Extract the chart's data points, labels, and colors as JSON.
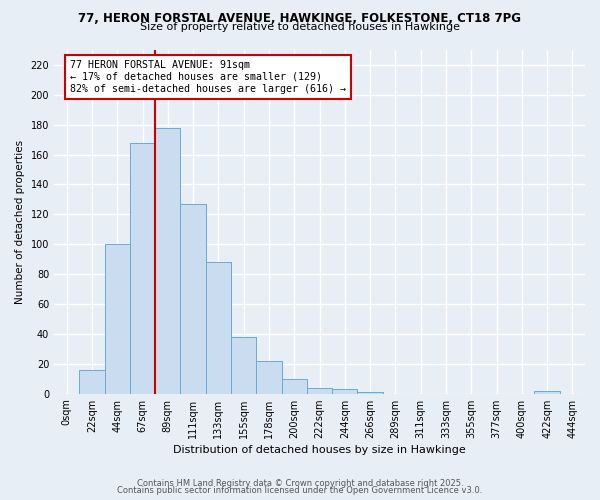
{
  "title_line1": "77, HERON FORSTAL AVENUE, HAWKINGE, FOLKESTONE, CT18 7PG",
  "title_line2": "Size of property relative to detached houses in Hawkinge",
  "xlabel": "Distribution of detached houses by size in Hawkinge",
  "ylabel": "Number of detached properties",
  "bar_labels": [
    "0sqm",
    "22sqm",
    "44sqm",
    "67sqm",
    "89sqm",
    "111sqm",
    "133sqm",
    "155sqm",
    "178sqm",
    "200sqm",
    "222sqm",
    "244sqm",
    "266sqm",
    "289sqm",
    "311sqm",
    "333sqm",
    "355sqm",
    "377sqm",
    "400sqm",
    "422sqm",
    "444sqm"
  ],
  "bar_heights": [
    0,
    16,
    100,
    168,
    178,
    127,
    88,
    38,
    22,
    10,
    4,
    3,
    1,
    0,
    0,
    0,
    0,
    0,
    0,
    2,
    0
  ],
  "bar_color": "#c9dcf0",
  "bar_edge_color": "#6aaad4",
  "vline_x": 3.5,
  "vline_color": "#cc0000",
  "annotation_text": "77 HERON FORSTAL AVENUE: 91sqm\n← 17% of detached houses are smaller (129)\n82% of semi-detached houses are larger (616) →",
  "annotation_box_color": "white",
  "annotation_box_edge": "#cc0000",
  "ylim": [
    0,
    230
  ],
  "yticks": [
    0,
    20,
    40,
    60,
    80,
    100,
    120,
    140,
    160,
    180,
    200,
    220
  ],
  "background_color": "#e8eef6",
  "grid_color": "white",
  "footer_line1": "Contains HM Land Registry data © Crown copyright and database right 2025.",
  "footer_line2": "Contains public sector information licensed under the Open Government Licence v3.0."
}
